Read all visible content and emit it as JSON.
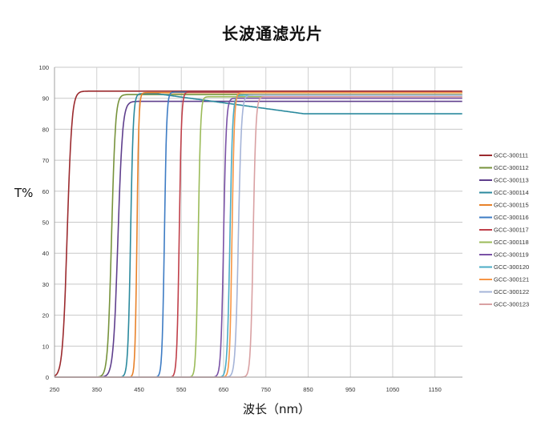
{
  "chart_data": {
    "type": "line",
    "title": "长波通滤光片",
    "xlabel": "波长（nm）",
    "ylabel": "T%",
    "xlim": [
      250,
      1215
    ],
    "ylim": [
      0,
      100
    ],
    "x_ticks": [
      250,
      350,
      450,
      550,
      650,
      750,
      850,
      950,
      1050,
      1150
    ],
    "y_ticks": [
      0,
      10,
      20,
      30,
      40,
      50,
      60,
      70,
      80,
      90,
      100
    ],
    "grid": true,
    "legend_position": "right",
    "series": [
      {
        "name": "GCC-300111",
        "color": "#9b2a2e",
        "cut_on_nm": 280,
        "width_nm": 12,
        "plateau": 92.3
      },
      {
        "name": "GCC-300112",
        "color": "#77933c",
        "cut_on_nm": 385,
        "width_nm": 10,
        "plateau": 91.2
      },
      {
        "name": "GCC-300113",
        "color": "#5f3f8d",
        "cut_on_nm": 400,
        "width_nm": 12,
        "plateau": 89.0
      },
      {
        "name": "GCC-300114",
        "color": "#2b8a9e",
        "cut_on_nm": 430,
        "width_nm": 7,
        "plateau": 91.5,
        "tail": 85.0
      },
      {
        "name": "GCC-300115",
        "color": "#e8822a",
        "cut_on_nm": 445,
        "width_nm": 5,
        "plateau": 91.8
      },
      {
        "name": "GCC-300116",
        "color": "#3e7cc4",
        "cut_on_nm": 510,
        "width_nm": 6,
        "plateau": 92.0
      },
      {
        "name": "GCC-300117",
        "color": "#c0404a",
        "cut_on_nm": 545,
        "width_nm": 6,
        "plateau": 92.0
      },
      {
        "name": "GCC-300118",
        "color": "#9bbb59",
        "cut_on_nm": 590,
        "width_nm": 6,
        "plateau": 90.5
      },
      {
        "name": "GCC-300119",
        "color": "#7a52a6",
        "cut_on_nm": 650,
        "width_nm": 7,
        "plateau": 90.0
      },
      {
        "name": "GCC-300120",
        "color": "#4bacc6",
        "cut_on_nm": 665,
        "width_nm": 7,
        "plateau": 91.0
      },
      {
        "name": "GCC-300121",
        "color": "#f79646",
        "cut_on_nm": 670,
        "width_nm": 6,
        "plateau": 91.8
      },
      {
        "name": "GCC-300122",
        "color": "#a5b4d8",
        "cut_on_nm": 685,
        "width_nm": 8,
        "plateau": 91.0
      },
      {
        "name": "GCC-300123",
        "color": "#d9a1a3",
        "cut_on_nm": 720,
        "width_nm": 7,
        "plateau": 90.5
      }
    ]
  }
}
